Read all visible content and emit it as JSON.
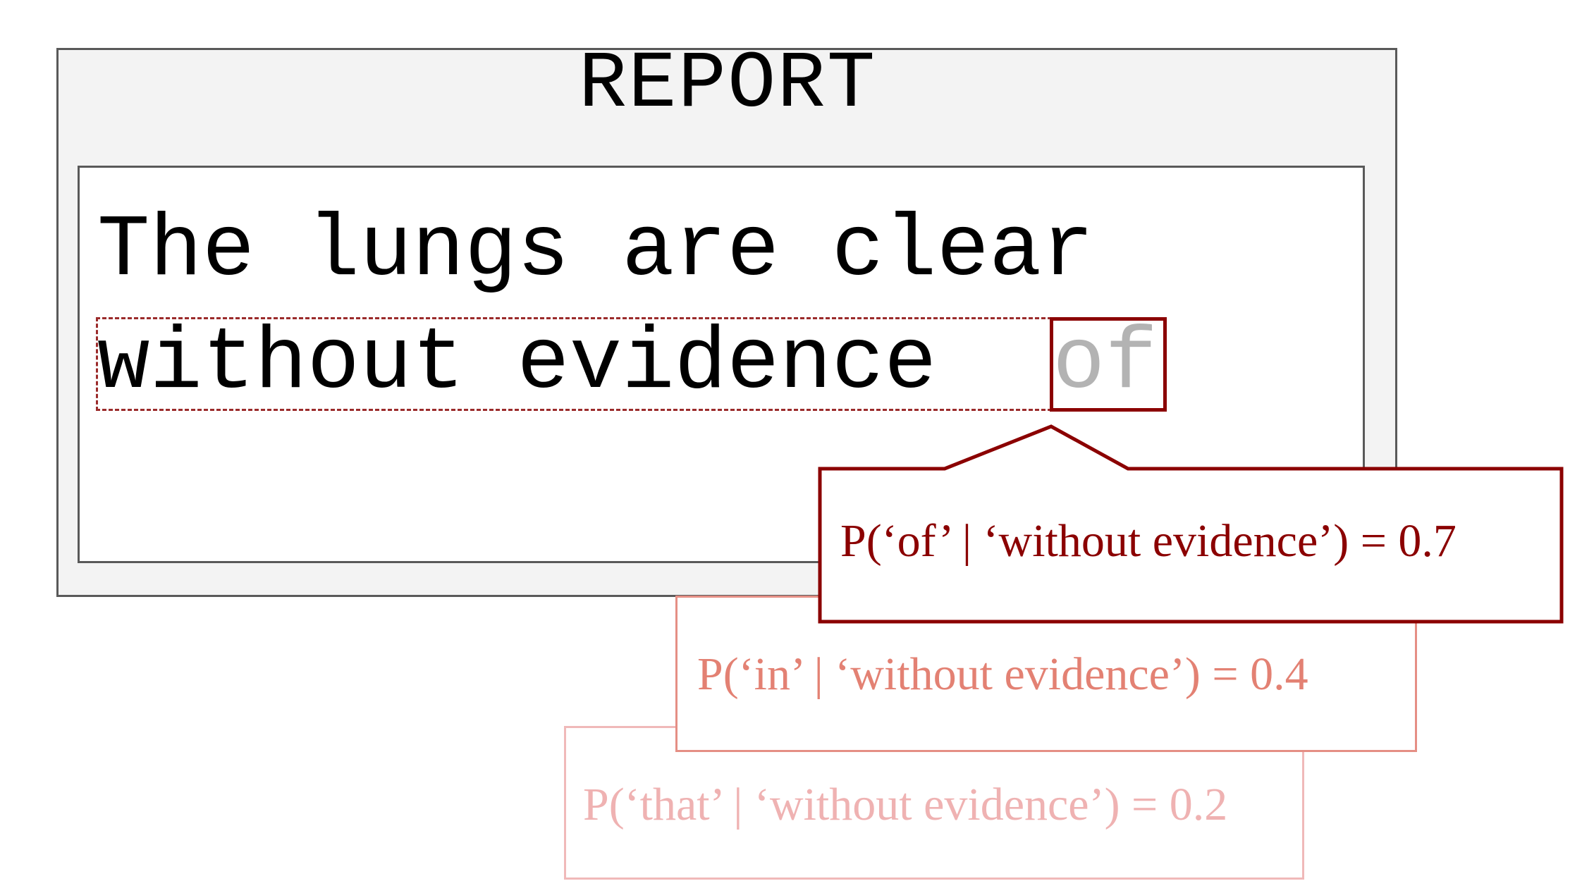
{
  "report": {
    "title": "REPORT",
    "line_1": "The lungs are clear",
    "line_2_context": "without evidence ",
    "line_2_target": "of"
  },
  "predictions": [
    {
      "label": "P(‘of’ | ‘without evidence’) = 0.7",
      "color": "#8b0000"
    },
    {
      "label": "P(‘in’ | ‘without evidence’) = 0.4",
      "color": "#e38173"
    },
    {
      "label": "P(‘that’ | ‘without evidence’) = 0.2",
      "color": "#efb2b2"
    }
  ],
  "colors": {
    "panel_bg": "#f3f3f3",
    "panel_border": "#595959",
    "highlight": "#8b0000",
    "predicted_word": "#b3b3b3"
  }
}
